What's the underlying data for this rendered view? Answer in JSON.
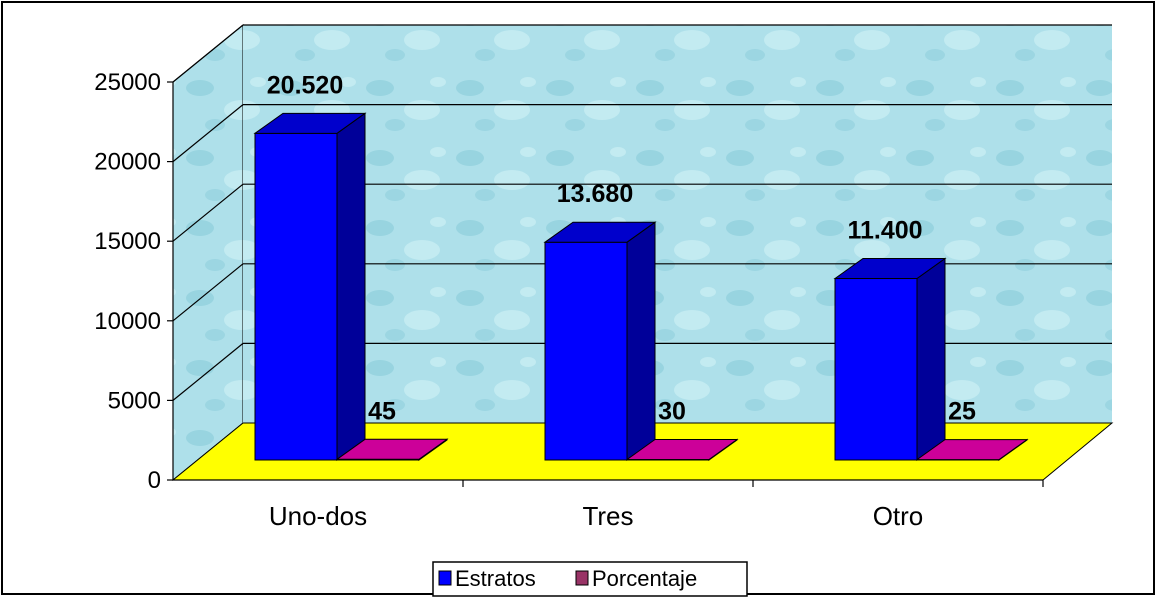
{
  "chart_data": {
    "type": "bar",
    "three_d": true,
    "categories": [
      "Uno-dos",
      "Tres",
      "Otro"
    ],
    "series": [
      {
        "name": "Estratos",
        "values": [
          20520,
          13680,
          11400
        ],
        "labels": [
          "20.520",
          "13.680",
          "11.400"
        ],
        "color": "#0000ff",
        "side_color": "#000099",
        "top_color": "#0000cc"
      },
      {
        "name": "Porcentaje",
        "values": [
          45,
          30,
          25
        ],
        "labels": [
          "45",
          "30",
          "25"
        ],
        "color": "#993366",
        "side_color": "#660033",
        "top_color": "#cc0099"
      }
    ],
    "ylim": [
      0,
      25000
    ],
    "yticks": [
      "0",
      "5000",
      "10000",
      "15000",
      "20000",
      "25000"
    ],
    "grid": true,
    "legend": "bottom",
    "wall_color": "#aee0ea",
    "floor_color": "#ffff00"
  }
}
